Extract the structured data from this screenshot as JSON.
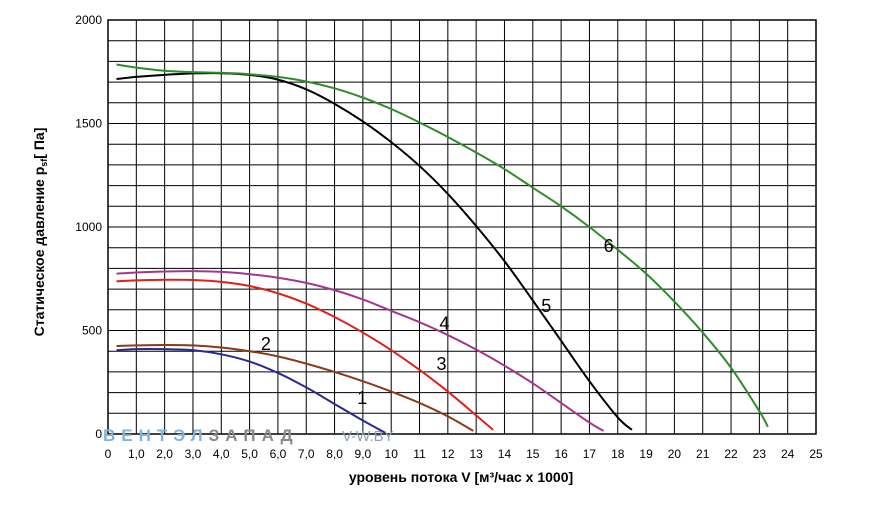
{
  "chart_data": {
    "type": "line",
    "ylabel": "Статическое давление  p",
    "ylabel_sub": "sf",
    "ylabel_unit": "[ Па]",
    "xlabel": "уровень потока  V [м³/час х 1000]",
    "xlim": [
      0,
      25
    ],
    "ylim": [
      0,
      2000
    ],
    "x_ticks": [
      "0",
      "1,0",
      "2,0",
      "3,0",
      "4,0",
      "5,0",
      "6,0",
      "7,0",
      "8,0",
      "9,0",
      "10",
      "11",
      "12",
      "13",
      "14",
      "15",
      "16",
      "17",
      "18",
      "19",
      "20",
      "21",
      "22",
      "23",
      "24",
      "25"
    ],
    "y_ticks": [
      "0",
      "500",
      "1000",
      "1500",
      "2000"
    ],
    "grid": true,
    "series": [
      {
        "name": "1",
        "color": "#2b2a8c",
        "x": [
          0.3,
          1.0,
          2.0,
          3.0,
          4.0,
          5.0,
          6.0,
          7.0,
          8.0,
          9.0,
          9.8
        ],
        "y": [
          405,
          410,
          410,
          405,
          385,
          350,
          295,
          225,
          145,
          65,
          5
        ]
      },
      {
        "name": "2",
        "color": "#8b3a1a",
        "x": [
          0.3,
          1.0,
          2.0,
          3.0,
          4.0,
          5.0,
          6.0,
          7.0,
          8.0,
          9.0,
          10.0,
          11.0,
          12.0,
          12.9
        ],
        "y": [
          425,
          428,
          430,
          428,
          418,
          400,
          375,
          340,
          300,
          255,
          205,
          150,
          85,
          15
        ]
      },
      {
        "name": "3",
        "color": "#e0201b",
        "x": [
          0.3,
          1.0,
          2.0,
          3.0,
          4.0,
          5.0,
          6.0,
          7.0,
          8.0,
          9.0,
          10.0,
          11.0,
          12.0,
          13.0,
          13.6
        ],
        "y": [
          738,
          742,
          745,
          744,
          735,
          715,
          680,
          630,
          565,
          490,
          405,
          310,
          205,
          90,
          20
        ]
      },
      {
        "name": "4",
        "color": "#a5368f",
        "x": [
          0.3,
          1.0,
          2.0,
          3.0,
          4.0,
          5.0,
          6.0,
          7.0,
          8.0,
          9.0,
          10.0,
          11.0,
          12.0,
          13.0,
          14.0,
          15.0,
          16.0,
          17.0,
          17.5
        ],
        "y": [
          775,
          780,
          785,
          787,
          783,
          772,
          755,
          730,
          695,
          650,
          595,
          540,
          478,
          408,
          330,
          245,
          150,
          55,
          15
        ]
      },
      {
        "name": "5",
        "color": "#000000",
        "x": [
          0.3,
          1.0,
          2.0,
          3.0,
          4.0,
          5.0,
          6.0,
          7.0,
          8.0,
          9.0,
          10.0,
          11.0,
          12.0,
          13.0,
          14.0,
          15.0,
          16.0,
          17.0,
          18.0,
          18.5
        ],
        "y": [
          1715,
          1725,
          1735,
          1742,
          1743,
          1735,
          1712,
          1665,
          1595,
          1510,
          1410,
          1295,
          1160,
          1005,
          835,
          645,
          450,
          255,
          80,
          20
        ]
      },
      {
        "name": "6",
        "color": "#2f8c2a",
        "x": [
          0.3,
          1.0,
          2.0,
          3.0,
          4.0,
          5.0,
          6.0,
          7.0,
          8.0,
          9.0,
          10.0,
          11.0,
          12.0,
          13.0,
          14.0,
          15.0,
          16.0,
          17.0,
          18.0,
          19.0,
          20.0,
          21.0,
          22.0,
          23.0,
          23.3
        ],
        "y": [
          1785,
          1770,
          1755,
          1748,
          1745,
          1738,
          1725,
          1703,
          1670,
          1625,
          1570,
          1505,
          1435,
          1360,
          1280,
          1190,
          1100,
          1000,
          890,
          775,
          640,
          490,
          320,
          110,
          35
        ]
      }
    ],
    "curve_labels": [
      {
        "text": "1",
        "x": 8.8,
        "y": 145
      },
      {
        "text": "2",
        "x": 5.4,
        "y": 405
      },
      {
        "text": "3",
        "x": 11.6,
        "y": 310
      },
      {
        "text": "4",
        "x": 11.7,
        "y": 505
      },
      {
        "text": "5",
        "x": 15.3,
        "y": 590
      },
      {
        "text": "6",
        "x": 17.5,
        "y": 880
      }
    ]
  },
  "watermark": {
    "brand": "ВЕНТЭЛ",
    "brand2": "ЗАПАД",
    "site": "V-W.BY"
  }
}
